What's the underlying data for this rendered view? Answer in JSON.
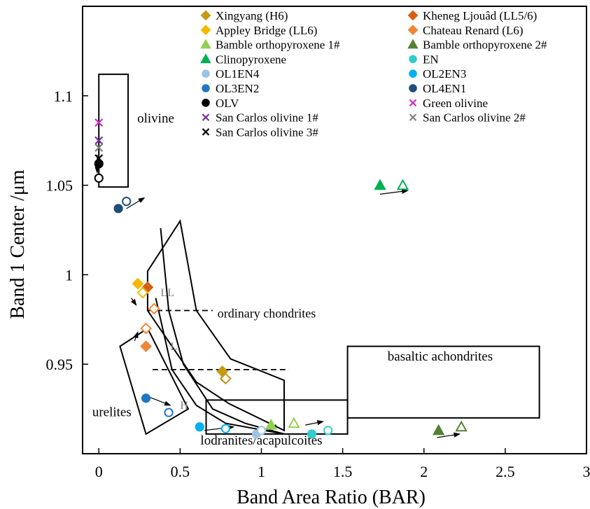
{
  "chart_data": {
    "type": "scatter",
    "xlabel": "Band Area Ratio (BAR)",
    "ylabel": "Band 1 Center /μm",
    "xlim": [
      -0.1,
      3.0
    ],
    "ylim": [
      0.9,
      1.15
    ],
    "xticks": [
      0,
      0.5,
      1,
      1.5,
      2,
      2.5,
      3
    ],
    "xtick_labels": [
      "0",
      "0.5",
      "1",
      "1.5",
      "2",
      "2.5",
      "3"
    ],
    "yticks": [
      0.95,
      1.0,
      1.05,
      1.1
    ],
    "ytick_labels": [
      "0.95",
      "1",
      "1.05",
      "1.1"
    ],
    "grid": false,
    "legend_position": "top-right",
    "colors": {
      "xingyang": "#c49a12",
      "kheneg": "#d65f12",
      "appley": "#f5b800",
      "chateau": "#ee8636",
      "bamble1": "#92d050",
      "bamble2": "#548235",
      "clinopyroxene": "#00b050",
      "en": "#33cccc",
      "ol1en4": "#9dc3e6",
      "ol2en3": "#00b0f0",
      "ol3en2": "#1f77c4",
      "ol4en1": "#1f4e79",
      "olv": "#000000",
      "green_olivine": "#cc33cc",
      "sc1": "#7030a0",
      "sc2": "#7f7f7f",
      "sc3": "#000000"
    },
    "series": [
      {
        "name": "Xingyang (H6)",
        "marker": "diamond",
        "color_key": "xingyang",
        "points": [
          [
            0.76,
            0.946,
            "filled"
          ],
          [
            0.78,
            0.942,
            "open"
          ]
        ]
      },
      {
        "name": "Kheneg Ljouâd (LL5/6)",
        "marker": "diamond",
        "color_key": "kheneg",
        "points": [
          [
            0.3,
            0.993,
            "filled"
          ]
        ]
      },
      {
        "name": "Appley Bridge (LL6)",
        "marker": "diamond",
        "color_key": "appley",
        "points": [
          [
            0.24,
            0.995,
            "filled"
          ],
          [
            0.27,
            0.99,
            "open"
          ]
        ]
      },
      {
        "name": "Chateau Renard (L6)",
        "marker": "diamond",
        "color_key": "chateau",
        "points": [
          [
            0.29,
            0.96,
            "filled"
          ],
          [
            0.29,
            0.97,
            "open"
          ],
          [
            0.34,
            0.981,
            "open"
          ]
        ]
      },
      {
        "name": "Bamble orthopyroxene 1#",
        "marker": "triangle",
        "color_key": "bamble1",
        "points": [
          [
            1.06,
            0.916,
            "filled"
          ],
          [
            1.2,
            0.917,
            "open"
          ]
        ]
      },
      {
        "name": "Bamble orthopyroxene 2#",
        "marker": "triangle",
        "color_key": "bamble2",
        "points": [
          [
            2.09,
            0.913,
            "filled"
          ],
          [
            2.23,
            0.915,
            "open"
          ]
        ]
      },
      {
        "name": "Clinopyroxene",
        "marker": "triangle",
        "color_key": "clinopyroxene",
        "points": [
          [
            1.73,
            1.05,
            "filled"
          ],
          [
            1.87,
            1.05,
            "open"
          ]
        ]
      },
      {
        "name": "EN",
        "marker": "circle",
        "color_key": "en",
        "points": [
          [
            1.31,
            0.911,
            "filled"
          ],
          [
            1.41,
            0.913,
            "open"
          ]
        ]
      },
      {
        "name": "OL1EN4",
        "marker": "circle",
        "color_key": "ol1en4",
        "points": [
          [
            0.97,
            0.911,
            "filled"
          ],
          [
            1.0,
            0.913,
            "open"
          ]
        ]
      },
      {
        "name": "OL2EN3",
        "marker": "circle",
        "color_key": "ol2en3",
        "points": [
          [
            0.62,
            0.915,
            "filled"
          ],
          [
            0.78,
            0.914,
            "open"
          ]
        ]
      },
      {
        "name": "OL3EN2",
        "marker": "circle",
        "color_key": "ol3en2",
        "points": [
          [
            0.29,
            0.931,
            "filled"
          ],
          [
            0.43,
            0.923,
            "open"
          ]
        ]
      },
      {
        "name": "OL4EN1",
        "marker": "circle",
        "color_key": "ol4en1",
        "points": [
          [
            0.12,
            1.037,
            "filled"
          ],
          [
            0.17,
            1.041,
            "open"
          ]
        ]
      },
      {
        "name": "OLV",
        "marker": "circle",
        "color_key": "olv",
        "points": [
          [
            0.0,
            1.062,
            "filled"
          ],
          [
            0.0,
            1.054,
            "open"
          ]
        ]
      },
      {
        "name": "Green olivine",
        "marker": "x",
        "color_key": "green_olivine",
        "points": [
          [
            0.0,
            1.085,
            "filled"
          ]
        ]
      },
      {
        "name": "San Carlos olivine 1#",
        "marker": "x",
        "color_key": "sc1",
        "points": [
          [
            0.0,
            1.075,
            "filled"
          ]
        ]
      },
      {
        "name": "San Carlos olivine 2#",
        "marker": "x",
        "color_key": "sc2",
        "points": [
          [
            0.0,
            1.071,
            "filled"
          ]
        ]
      },
      {
        "name": "San Carlos olivine 3#",
        "marker": "x",
        "color_key": "sc3",
        "points": [
          [
            0.0,
            1.065,
            "filled"
          ]
        ]
      }
    ],
    "regions": [
      {
        "label": "olivine",
        "label_xy": [
          0.35,
          1.085
        ],
        "poly": [
          [
            0.0,
            1.049
          ],
          [
            0.18,
            1.049
          ],
          [
            0.18,
            1.112
          ],
          [
            0.0,
            1.112
          ]
        ]
      },
      {
        "label": "basaltic achondrites",
        "label_xy": [
          2.1,
          0.952
        ],
        "poly": [
          [
            1.53,
            0.92
          ],
          [
            2.71,
            0.92
          ],
          [
            2.71,
            0.96
          ],
          [
            1.53,
            0.96
          ]
        ]
      },
      {
        "label": "lodranites/acapulcoites",
        "label_xy": [
          1.0,
          0.905
        ],
        "poly": [
          [
            0.66,
            0.911
          ],
          [
            1.53,
            0.911
          ],
          [
            1.53,
            0.93
          ],
          [
            0.66,
            0.93
          ]
        ]
      },
      {
        "label": "urelites",
        "label_xy": [
          0.08,
          0.921
        ],
        "poly": [
          [
            0.13,
            0.96
          ],
          [
            0.3,
            0.97
          ],
          [
            0.55,
            0.925
          ],
          [
            0.29,
            0.911
          ]
        ]
      },
      {
        "label": "",
        "label_xy": null,
        "poly": [
          [
            0.3,
            1.002
          ],
          [
            0.5,
            1.03
          ],
          [
            0.6,
            0.98
          ],
          [
            0.81,
            0.953
          ],
          [
            1.14,
            0.941
          ],
          [
            1.14,
            0.913
          ],
          [
            0.8,
            0.928
          ],
          [
            0.6,
            0.94
          ],
          [
            0.45,
            0.96
          ],
          [
            0.3,
            0.98
          ]
        ]
      }
    ],
    "ordinary_chondrite_curves": [
      [
        [
          0.38,
          1.026
        ],
        [
          0.43,
          0.98
        ],
        [
          0.52,
          0.95
        ],
        [
          0.7,
          0.925
        ],
        [
          0.9,
          0.917
        ],
        [
          1.14,
          0.911
        ]
      ],
      [
        [
          0.35,
          0.987
        ],
        [
          0.45,
          0.947
        ],
        [
          0.6,
          0.927
        ],
        [
          0.78,
          0.917
        ],
        [
          1.14,
          0.911
        ]
      ]
    ],
    "dashed_lines": [
      {
        "y": 0.98,
        "x": [
          0.3,
          0.7
        ]
      },
      {
        "y": 0.947,
        "x": [
          0.33,
          1.17
        ]
      }
    ],
    "annotations": [
      {
        "text": "ordinary chondrites",
        "x": 0.73,
        "y": 0.976,
        "color": "#000000",
        "size": 18
      },
      {
        "text": "LL",
        "x": 0.38,
        "y": 0.988,
        "color": "#808080",
        "size": 16
      },
      {
        "text": "L",
        "x": 0.44,
        "y": 0.958,
        "color": "#808080",
        "size": 16
      },
      {
        "text": "H",
        "x": 0.5,
        "y": 0.925,
        "color": "#808080",
        "size": 16
      }
    ],
    "arrows": [
      [
        [
          -0.01,
          1.067
        ],
        [
          -0.01,
          1.057
        ]
      ],
      [
        [
          0.17,
          1.037
        ],
        [
          0.28,
          1.043
        ]
      ],
      [
        [
          0.2,
          0.987
        ],
        [
          0.23,
          0.983
        ]
      ],
      [
        [
          0.22,
          0.963
        ],
        [
          0.24,
          0.968
        ]
      ],
      [
        [
          0.3,
          0.932
        ],
        [
          0.44,
          0.927
        ]
      ],
      [
        [
          0.74,
          0.946
        ],
        [
          0.78,
          0.939
        ]
      ],
      [
        [
          0.65,
          0.913
        ],
        [
          0.83,
          0.915
        ]
      ],
      [
        [
          1.0,
          0.913
        ],
        [
          1.09,
          0.916
        ]
      ],
      [
        [
          1.27,
          0.916
        ],
        [
          1.38,
          0.918
        ]
      ],
      [
        [
          1.73,
          1.045
        ],
        [
          1.9,
          1.047
        ]
      ],
      [
        [
          2.08,
          0.909
        ],
        [
          2.22,
          0.911
        ]
      ]
    ]
  }
}
